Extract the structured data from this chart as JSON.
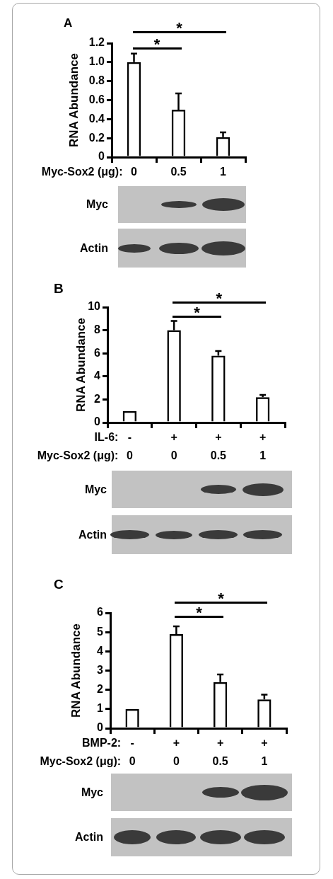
{
  "chart_data": [
    {
      "type": "bar",
      "title": "A",
      "ylabel": "RNA Abundance",
      "xlabel": "Myc-Sox2 (μg):",
      "categories": [
        "0",
        "0.5",
        "1"
      ],
      "values": [
        1.0,
        0.5,
        0.21
      ],
      "errors": [
        [
          1.0,
          1.09
        ],
        [
          0.5,
          0.67
        ],
        [
          0.21,
          0.26
        ]
      ],
      "color": "#000000",
      "ylim": [
        0,
        1.2
      ],
      "yticks": [
        0,
        0.2,
        0.4,
        0.6,
        0.8,
        {
          "value": 1,
          "label": "1.0"
        },
        1.2
      ],
      "annotations": [
        "*",
        "*",
        "Myc",
        "Actin"
      ]
    },
    {
      "type": "bar",
      "title": "B",
      "ylabel": "RNA Abundance",
      "xlabel": "IL-6:\nMyc-Sox2 (μg):",
      "categories": [
        "-\n0",
        "+\n0",
        "+\n0.5",
        "+\n1"
      ],
      "values": [
        1.0,
        8.0,
        5.8,
        2.2
      ],
      "errors": [
        null,
        [
          8.0,
          8.8
        ],
        [
          5.8,
          6.2
        ],
        [
          2.2,
          2.4
        ]
      ],
      "color": "#000000",
      "ylim": [
        0,
        10
      ],
      "yticks": [
        0,
        2,
        4,
        6,
        8,
        10
      ],
      "annotations": [
        "*",
        "*",
        "Myc",
        "Actin"
      ]
    },
    {
      "type": "bar",
      "title": "C",
      "ylabel": "RNA Abundance",
      "xlabel": "BMP-2:\nMyc-Sox2 (μg):",
      "categories": [
        "-\n0",
        "+\n0",
        "+\n0.5",
        "+\n1"
      ],
      "values": [
        1.0,
        4.9,
        2.4,
        1.5
      ],
      "errors": [
        null,
        [
          4.9,
          5.3
        ],
        [
          2.4,
          2.8
        ],
        [
          1.5,
          1.75
        ]
      ],
      "color": "#000000",
      "ylim": [
        0,
        6
      ],
      "yticks": [
        0,
        1,
        2,
        3,
        4,
        5,
        6
      ],
      "annotations": [
        "*",
        "*",
        "Myc",
        "Actin"
      ]
    }
  ]
}
